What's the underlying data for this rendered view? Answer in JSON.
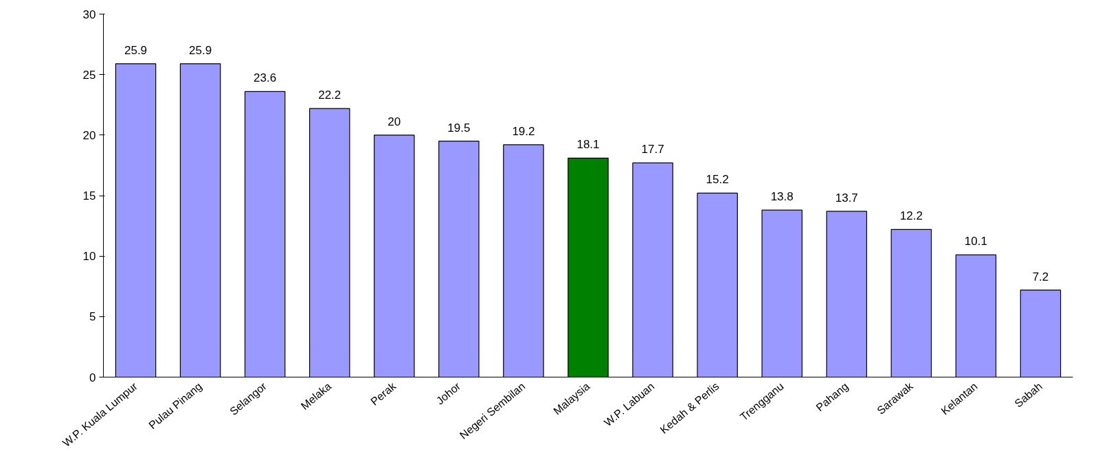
{
  "chart_data": {
    "type": "bar",
    "categories": [
      "W.P. Kuala Lumpur",
      "Pulau Pinang",
      "Selangor",
      "Melaka",
      "Perak",
      "Johor",
      "Negeri Sembilan",
      "Malaysia",
      "W.P. Labuan",
      "Kedah & Perlis",
      "Trengganu",
      "Pahang",
      "Sarawak",
      "Kelantan",
      "Sabah"
    ],
    "values": [
      25.9,
      25.9,
      23.6,
      22.2,
      20,
      19.5,
      19.2,
      18.1,
      17.7,
      15.2,
      13.8,
      13.7,
      12.2,
      10.1,
      7.2
    ],
    "colors": [
      "#9999ff",
      "#9999ff",
      "#9999ff",
      "#9999ff",
      "#9999ff",
      "#9999ff",
      "#9999ff",
      "#008000",
      "#9999ff",
      "#9999ff",
      "#9999ff",
      "#9999ff",
      "#9999ff",
      "#9999ff",
      "#9999ff"
    ],
    "ylim": [
      0,
      30
    ],
    "yticks": [
      0,
      5,
      10,
      15,
      20,
      25,
      30
    ],
    "grid": false,
    "data_labels": true
  }
}
